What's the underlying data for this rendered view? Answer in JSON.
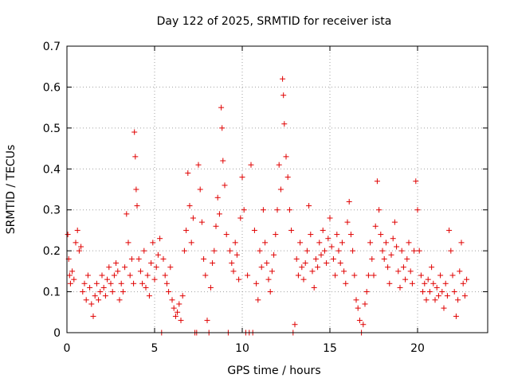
{
  "chart_data": {
    "type": "scatter",
    "title": "Day 122 of 2025, SRMTID for receiver ista",
    "xlabel": "GPS time / hours",
    "ylabel": "SRMTID / TECUs",
    "xlim": [
      0,
      24
    ],
    "ylim": [
      0,
      0.7
    ],
    "xticks": [
      0,
      5,
      10,
      15,
      20
    ],
    "xtick_labels": [
      "0",
      "5",
      "10",
      "15",
      "20"
    ],
    "yticks": [
      0,
      0.1,
      0.2,
      0.3,
      0.4,
      0.5,
      0.6,
      0.7
    ],
    "ytick_labels": [
      "0",
      "0.1",
      "0.2",
      "0.3",
      "0.4",
      "0.5",
      "0.6",
      "0.7"
    ],
    "grid": true,
    "marker": "plus",
    "color": "#e00000",
    "series": [
      {
        "name": "SRMTID",
        "points": [
          [
            0.05,
            0.24
          ],
          [
            0.1,
            0.18
          ],
          [
            0.15,
            0.14
          ],
          [
            0.2,
            0.12
          ],
          [
            0.3,
            0.15
          ],
          [
            0.4,
            0.13
          ],
          [
            0.5,
            0.22
          ],
          [
            0.6,
            0.25
          ],
          [
            0.7,
            0.2
          ],
          [
            0.8,
            0.21
          ],
          [
            0.9,
            0.1
          ],
          [
            1.0,
            0.12
          ],
          [
            1.1,
            0.08
          ],
          [
            1.2,
            0.14
          ],
          [
            1.3,
            0.11
          ],
          [
            1.4,
            0.07
          ],
          [
            1.5,
            0.04
          ],
          [
            1.6,
            0.09
          ],
          [
            1.7,
            0.12
          ],
          [
            1.8,
            0.08
          ],
          [
            1.9,
            0.1
          ],
          [
            2.0,
            0.14
          ],
          [
            2.1,
            0.11
          ],
          [
            2.2,
            0.09
          ],
          [
            2.3,
            0.13
          ],
          [
            2.4,
            0.16
          ],
          [
            2.5,
            0.12
          ],
          [
            2.6,
            0.1
          ],
          [
            2.7,
            0.14
          ],
          [
            2.8,
            0.17
          ],
          [
            2.9,
            0.15
          ],
          [
            3.0,
            0.08
          ],
          [
            3.1,
            0.12
          ],
          [
            3.2,
            0.1
          ],
          [
            3.3,
            0.16
          ],
          [
            3.4,
            0.29
          ],
          [
            3.5,
            0.22
          ],
          [
            3.6,
            0.14
          ],
          [
            3.7,
            0.18
          ],
          [
            3.8,
            0.12
          ],
          [
            3.85,
            0.49
          ],
          [
            3.9,
            0.43
          ],
          [
            3.95,
            0.35
          ],
          [
            4.0,
            0.31
          ],
          [
            4.1,
            0.18
          ],
          [
            4.2,
            0.15
          ],
          [
            4.3,
            0.12
          ],
          [
            4.4,
            0.2
          ],
          [
            4.5,
            0.11
          ],
          [
            4.6,
            0.14
          ],
          [
            4.7,
            0.09
          ],
          [
            4.8,
            0.17
          ],
          [
            4.9,
            0.22
          ],
          [
            5.0,
            0.13
          ],
          [
            5.1,
            0.16
          ],
          [
            5.2,
            0.19
          ],
          [
            5.3,
            0.23
          ],
          [
            5.4,
            0.0
          ],
          [
            5.5,
            0.18
          ],
          [
            5.6,
            0.14
          ],
          [
            5.7,
            0.12
          ],
          [
            5.8,
            0.1
          ],
          [
            5.9,
            0.16
          ],
          [
            6.0,
            0.08
          ],
          [
            6.1,
            0.06
          ],
          [
            6.2,
            0.04
          ],
          [
            6.3,
            0.05
          ],
          [
            6.4,
            0.07
          ],
          [
            6.5,
            0.03
          ],
          [
            6.6,
            0.09
          ],
          [
            6.7,
            0.2
          ],
          [
            6.8,
            0.25
          ],
          [
            6.9,
            0.39
          ],
          [
            7.0,
            0.31
          ],
          [
            7.1,
            0.22
          ],
          [
            7.2,
            0.28
          ],
          [
            7.3,
            0.0
          ],
          [
            7.4,
            0.0
          ],
          [
            7.5,
            0.41
          ],
          [
            7.6,
            0.35
          ],
          [
            7.7,
            0.27
          ],
          [
            7.8,
            0.18
          ],
          [
            7.9,
            0.14
          ],
          [
            8.0,
            0.03
          ],
          [
            8.1,
            0.0
          ],
          [
            8.2,
            0.11
          ],
          [
            8.3,
            0.17
          ],
          [
            8.4,
            0.2
          ],
          [
            8.5,
            0.26
          ],
          [
            8.6,
            0.33
          ],
          [
            8.7,
            0.29
          ],
          [
            8.8,
            0.55
          ],
          [
            8.85,
            0.5
          ],
          [
            8.9,
            0.42
          ],
          [
            9.0,
            0.36
          ],
          [
            9.1,
            0.24
          ],
          [
            9.2,
            0.0
          ],
          [
            9.3,
            0.2
          ],
          [
            9.4,
            0.17
          ],
          [
            9.5,
            0.15
          ],
          [
            9.6,
            0.22
          ],
          [
            9.7,
            0.19
          ],
          [
            9.8,
            0.13
          ],
          [
            9.9,
            0.28
          ],
          [
            10.0,
            0.38
          ],
          [
            10.1,
            0.3
          ],
          [
            10.2,
            0.0
          ],
          [
            10.3,
            0.14
          ],
          [
            10.4,
            0.0
          ],
          [
            10.5,
            0.41
          ],
          [
            10.6,
            0.0
          ],
          [
            10.7,
            0.25
          ],
          [
            10.8,
            0.12
          ],
          [
            10.9,
            0.08
          ],
          [
            11.0,
            0.2
          ],
          [
            11.1,
            0.16
          ],
          [
            11.2,
            0.3
          ],
          [
            11.3,
            0.22
          ],
          [
            11.4,
            0.17
          ],
          [
            11.5,
            0.13
          ],
          [
            11.6,
            0.1
          ],
          [
            11.7,
            0.15
          ],
          [
            11.8,
            0.19
          ],
          [
            11.9,
            0.24
          ],
          [
            12.0,
            0.3
          ],
          [
            12.1,
            0.41
          ],
          [
            12.2,
            0.35
          ],
          [
            12.3,
            0.62
          ],
          [
            12.35,
            0.58
          ],
          [
            12.4,
            0.51
          ],
          [
            12.5,
            0.43
          ],
          [
            12.6,
            0.38
          ],
          [
            12.7,
            0.3
          ],
          [
            12.8,
            0.25
          ],
          [
            12.9,
            0.0
          ],
          [
            13.0,
            0.02
          ],
          [
            13.1,
            0.18
          ],
          [
            13.2,
            0.14
          ],
          [
            13.3,
            0.22
          ],
          [
            13.4,
            0.16
          ],
          [
            13.5,
            0.13
          ],
          [
            13.6,
            0.17
          ],
          [
            13.7,
            0.2
          ],
          [
            13.8,
            0.31
          ],
          [
            13.9,
            0.24
          ],
          [
            14.0,
            0.15
          ],
          [
            14.1,
            0.11
          ],
          [
            14.2,
            0.18
          ],
          [
            14.3,
            0.16
          ],
          [
            14.4,
            0.22
          ],
          [
            14.5,
            0.19
          ],
          [
            14.6,
            0.25
          ],
          [
            14.7,
            0.2
          ],
          [
            14.8,
            0.17
          ],
          [
            14.9,
            0.23
          ],
          [
            15.0,
            0.28
          ],
          [
            15.1,
            0.21
          ],
          [
            15.2,
            0.18
          ],
          [
            15.3,
            0.14
          ],
          [
            15.4,
            0.24
          ],
          [
            15.5,
            0.2
          ],
          [
            15.6,
            0.17
          ],
          [
            15.7,
            0.22
          ],
          [
            15.8,
            0.15
          ],
          [
            15.9,
            0.12
          ],
          [
            16.0,
            0.27
          ],
          [
            16.1,
            0.32
          ],
          [
            16.2,
            0.24
          ],
          [
            16.3,
            0.2
          ],
          [
            16.4,
            0.14
          ],
          [
            16.5,
            0.08
          ],
          [
            16.6,
            0.06
          ],
          [
            16.7,
            0.03
          ],
          [
            16.8,
            0.0
          ],
          [
            16.9,
            0.02
          ],
          [
            17.0,
            0.07
          ],
          [
            17.1,
            0.1
          ],
          [
            17.2,
            0.14
          ],
          [
            17.3,
            0.22
          ],
          [
            17.4,
            0.18
          ],
          [
            17.5,
            0.14
          ],
          [
            17.6,
            0.26
          ],
          [
            17.7,
            0.37
          ],
          [
            17.8,
            0.3
          ],
          [
            17.9,
            0.24
          ],
          [
            18.0,
            0.2
          ],
          [
            18.1,
            0.18
          ],
          [
            18.2,
            0.22
          ],
          [
            18.3,
            0.16
          ],
          [
            18.4,
            0.12
          ],
          [
            18.5,
            0.19
          ],
          [
            18.6,
            0.23
          ],
          [
            18.7,
            0.27
          ],
          [
            18.8,
            0.21
          ],
          [
            18.9,
            0.15
          ],
          [
            19.0,
            0.11
          ],
          [
            19.1,
            0.2
          ],
          [
            19.2,
            0.16
          ],
          [
            19.3,
            0.13
          ],
          [
            19.4,
            0.18
          ],
          [
            19.5,
            0.22
          ],
          [
            19.6,
            0.15
          ],
          [
            19.7,
            0.12
          ],
          [
            19.8,
            0.2
          ],
          [
            19.9,
            0.37
          ],
          [
            20.0,
            0.3
          ],
          [
            20.1,
            0.2
          ],
          [
            20.2,
            0.14
          ],
          [
            20.3,
            0.1
          ],
          [
            20.4,
            0.12
          ],
          [
            20.5,
            0.08
          ],
          [
            20.6,
            0.13
          ],
          [
            20.7,
            0.1
          ],
          [
            20.8,
            0.16
          ],
          [
            20.9,
            0.12
          ],
          [
            21.0,
            0.08
          ],
          [
            21.1,
            0.11
          ],
          [
            21.2,
            0.09
          ],
          [
            21.3,
            0.14
          ],
          [
            21.4,
            0.1
          ],
          [
            21.5,
            0.06
          ],
          [
            21.6,
            0.12
          ],
          [
            21.7,
            0.09
          ],
          [
            21.8,
            0.25
          ],
          [
            21.9,
            0.2
          ],
          [
            22.0,
            0.14
          ],
          [
            22.1,
            0.1
          ],
          [
            22.2,
            0.04
          ],
          [
            22.3,
            0.08
          ],
          [
            22.4,
            0.15
          ],
          [
            22.5,
            0.22
          ],
          [
            22.6,
            0.12
          ],
          [
            22.7,
            0.09
          ],
          [
            22.8,
            0.13
          ]
        ]
      }
    ]
  }
}
